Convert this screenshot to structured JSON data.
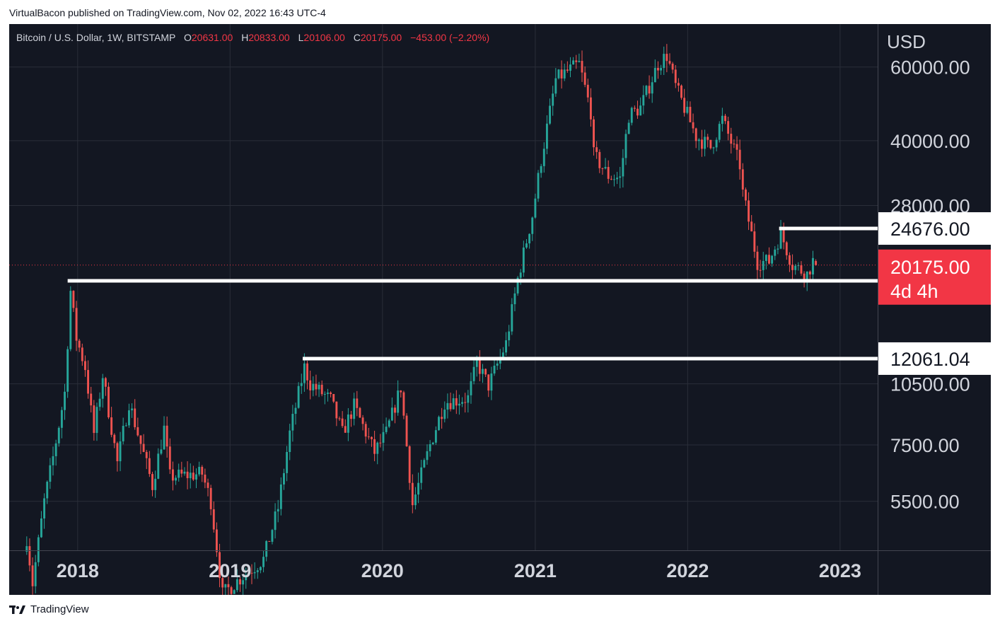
{
  "publication": {
    "author": "VirtualBacon",
    "published_prefix": "published on",
    "site": "TradingView.com",
    "timestamp": "Nov 02, 2022 16:43 UTC-4"
  },
  "legend": {
    "symbol": "Bitcoin / U.S. Dollar, 1W, BITSTAMP",
    "open_label": "O",
    "open": "20631.00",
    "high_label": "H",
    "high": "20833.00",
    "low_label": "L",
    "low": "20106.00",
    "close_label": "C",
    "close": "20175.00",
    "change": "−453.00 (−2.20%)"
  },
  "colors": {
    "background": "#131722",
    "up": "#26a69a",
    "down": "#ef5350",
    "grid": "#2a2e39",
    "text": "#d1d4dc",
    "level_line": "#ffffff",
    "price_tag": "#f23645"
  },
  "footer": {
    "brand": "TradingView",
    "icon": "tradingview-logo-icon"
  },
  "chart_data": {
    "type": "candlestick",
    "interval": "1W",
    "y_scale": "log",
    "ylim": [
      4200,
      76000
    ],
    "x_range": [
      "2017-07-21",
      "2023-04-01"
    ],
    "currency_label": "USD",
    "y_ticks": [
      "60000.00",
      "40000.00",
      "28000.00",
      "10500.00",
      "7500.00",
      "5500.00"
    ],
    "x_ticks": [
      "2018",
      "2019",
      "2020",
      "2021",
      "2022",
      "2023"
    ],
    "levels": [
      {
        "label": "24676.00",
        "value": 24676,
        "from": "2022-08-08"
      },
      {
        "label": "18500.00",
        "value": 18500,
        "from": "2017-12-08"
      },
      {
        "label": "12061.04",
        "value": 12061,
        "from": "2019-06-24"
      }
    ],
    "current_price": {
      "label": "20175.00",
      "countdown": "4d 4h",
      "value": 20175
    },
    "anchors": [
      [
        "2017-09-01",
        4500
      ],
      [
        "2017-09-15",
        3500
      ],
      [
        "2017-10-13",
        5500
      ],
      [
        "2017-11-03",
        7000
      ],
      [
        "2017-12-01",
        10000
      ],
      [
        "2017-12-15",
        17500
      ],
      [
        "2017-12-29",
        13500
      ],
      [
        "2018-01-19",
        11500
      ],
      [
        "2018-02-09",
        8000
      ],
      [
        "2018-03-02",
        11000
      ],
      [
        "2018-04-06",
        6800
      ],
      [
        "2018-05-04",
        9500
      ],
      [
        "2018-06-29",
        6000
      ],
      [
        "2018-07-27",
        8200
      ],
      [
        "2018-08-10",
        6300
      ],
      [
        "2018-10-26",
        6400
      ],
      [
        "2018-11-16",
        5500
      ],
      [
        "2018-12-14",
        3300
      ],
      [
        "2019-01-25",
        3600
      ],
      [
        "2019-03-22",
        4000
      ],
      [
        "2019-04-26",
        5300
      ],
      [
        "2019-05-24",
        8000
      ],
      [
        "2019-06-28",
        11500
      ],
      [
        "2019-07-12",
        10500
      ],
      [
        "2019-08-30",
        9600
      ],
      [
        "2019-09-27",
        8000
      ],
      [
        "2019-10-25",
        9300
      ],
      [
        "2019-12-13",
        7200
      ],
      [
        "2020-01-10",
        8000
      ],
      [
        "2020-02-14",
        10300
      ],
      [
        "2020-03-13",
        5400
      ],
      [
        "2020-04-24",
        7500
      ],
      [
        "2020-05-29",
        9500
      ],
      [
        "2020-07-24",
        9700
      ],
      [
        "2020-08-14",
        11800
      ],
      [
        "2020-09-11",
        10400
      ],
      [
        "2020-10-23",
        13100
      ],
      [
        "2020-11-20",
        18700
      ],
      [
        "2020-12-25",
        26500
      ],
      [
        "2021-01-15",
        36000
      ],
      [
        "2021-02-19",
        56000
      ],
      [
        "2021-03-12",
        58000
      ],
      [
        "2021-04-16",
        61000
      ],
      [
        "2021-05-14",
        47000
      ],
      [
        "2021-05-21",
        37000
      ],
      [
        "2021-06-25",
        33000
      ],
      [
        "2021-07-23",
        32500
      ],
      [
        "2021-08-13",
        46000
      ],
      [
        "2021-09-10",
        48000
      ],
      [
        "2021-10-22",
        61000
      ],
      [
        "2021-11-12",
        64000
      ],
      [
        "2021-12-03",
        54000
      ],
      [
        "2022-01-21",
        41000
      ],
      [
        "2022-02-25",
        38500
      ],
      [
        "2022-03-25",
        45000
      ],
      [
        "2022-05-06",
        35000
      ],
      [
        "2022-05-13",
        30000
      ],
      [
        "2022-06-17",
        20500
      ],
      [
        "2022-07-15",
        20600
      ],
      [
        "2022-08-12",
        24000
      ],
      [
        "2022-09-09",
        20200
      ],
      [
        "2022-10-14",
        19200
      ],
      [
        "2022-10-28",
        20631
      ],
      [
        "2022-11-04",
        20175
      ]
    ]
  }
}
